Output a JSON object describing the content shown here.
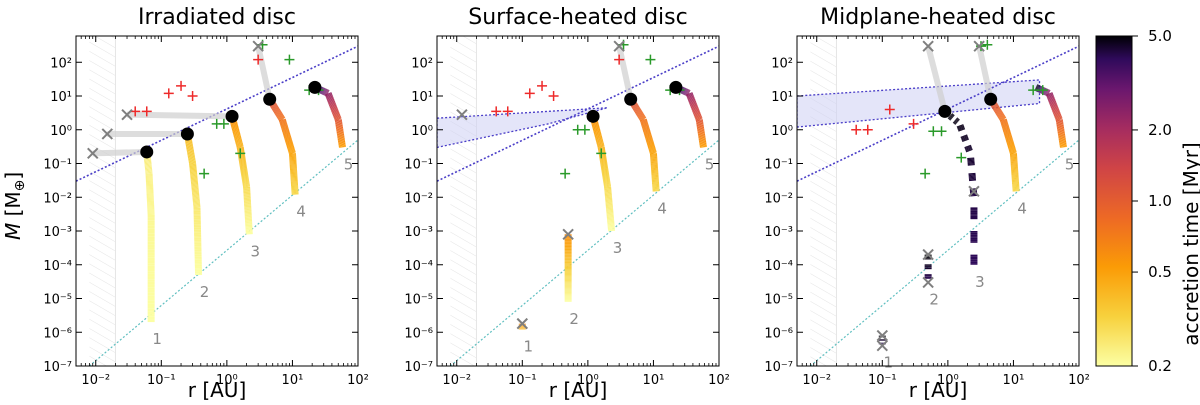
{
  "ylabel_main": "M",
  "ylabel_unit": "[M",
  "ylabel_sub": "⊕",
  "ylabel_close": "]",
  "colorbar": {
    "label": "accretion time [Myr]",
    "ticks": [
      "0.2",
      "0.5",
      "1.0",
      "2.0",
      "5.0"
    ],
    "tick_values": [
      0.2,
      0.5,
      1.0,
      2.0,
      5.0
    ],
    "range": [
      0.2,
      5.0
    ],
    "scale": "log",
    "colormap": "inferno_r"
  },
  "chart_data": [
    {
      "type": "line",
      "title": "Irradiated disc",
      "xlabel": "r [AU]",
      "xscale": "log",
      "yscale": "log",
      "xlim": [
        0.005,
        100
      ],
      "ylim": [
        1e-07,
        600
      ],
      "x_ticks": [
        "10⁻²",
        "10⁻¹",
        "10⁰",
        "10¹",
        "10²"
      ],
      "y_ticks": [
        "10⁻⁷",
        "10⁻⁶",
        "10⁻⁵",
        "10⁻⁴",
        "10⁻³",
        "10⁻²",
        "10⁻¹",
        "10⁰",
        "10¹",
        "10²"
      ],
      "series": [
        {
          "label": "1",
          "points": [
            [
              0.06,
              0.22
            ],
            [
              0.065,
              0.05
            ],
            [
              0.07,
              0.003
            ],
            [
              0.07,
              2e-06
            ]
          ],
          "t_start": 0.25,
          "t_end": 0.2
        },
        {
          "label": "2",
          "points": [
            [
              0.25,
              0.75
            ],
            [
              0.3,
              0.1
            ],
            [
              0.35,
              0.005
            ],
            [
              0.37,
              5e-05
            ]
          ],
          "t_start": 0.4,
          "t_end": 0.2
        },
        {
          "label": "3",
          "points": [
            [
              1.2,
              2.5
            ],
            [
              1.6,
              0.3
            ],
            [
              2.0,
              0.02
            ],
            [
              2.2,
              0.0008
            ]
          ],
          "t_start": 0.6,
          "t_end": 0.2
        },
        {
          "label": "4",
          "points": [
            [
              4.5,
              8
            ],
            [
              7,
              2
            ],
            [
              10,
              0.2
            ],
            [
              11,
              0.012
            ]
          ],
          "t_start": 1.2,
          "t_end": 0.3
        },
        {
          "label": "5",
          "points": [
            [
              22,
              18
            ],
            [
              35,
              12
            ],
            [
              50,
              2
            ],
            [
              58,
              0.3
            ]
          ],
          "t_start": 5.0,
          "t_end": 0.5
        }
      ],
      "final_planets": [
        [
          0.06,
          0.22
        ],
        [
          0.25,
          0.75
        ],
        [
          1.2,
          2.5
        ],
        [
          4.5,
          8
        ],
        [
          22,
          18
        ]
      ],
      "grey_crosses": [
        [
          0.009,
          0.2
        ],
        [
          0.015,
          0.75
        ],
        [
          0.03,
          2.8
        ],
        [
          3,
          300
        ]
      ],
      "grey_tracks": [
        [
          [
            0.009,
            0.2
          ],
          [
            0.06,
            0.22
          ]
        ],
        [
          [
            0.015,
            0.75
          ],
          [
            0.25,
            0.75
          ]
        ],
        [
          [
            0.03,
            2.8
          ],
          [
            1.2,
            2.5
          ]
        ],
        [
          [
            3,
            300
          ],
          [
            4.5,
            8
          ]
        ]
      ],
      "red_plus": [
        [
          0.04,
          3.5
        ],
        [
          0.06,
          3.5
        ],
        [
          0.13,
          12
        ],
        [
          0.2,
          20
        ],
        [
          0.3,
          10
        ],
        [
          3,
          120
        ]
      ],
      "green_plus": [
        [
          0.7,
          1.5
        ],
        [
          0.9,
          1.5
        ],
        [
          0.45,
          0.05
        ],
        [
          1.6,
          0.2
        ],
        [
          3.5,
          330
        ],
        [
          9,
          120
        ],
        [
          18,
          15
        ],
        [
          25,
          15
        ]
      ],
      "pebble_iso_line": {
        "points": [
          [
            0.005,
            0.03
          ],
          [
            100,
            300
          ]
        ],
        "color": "#4b3fc8"
      },
      "lower_line": {
        "points": [
          [
            0.008,
            1e-07
          ],
          [
            100,
            0.5
          ]
        ],
        "color": "#5fbfc0"
      },
      "shaded_region": null,
      "inner_edge_x": [
        0.008,
        0.02
      ]
    },
    {
      "type": "line",
      "title": "Surface-heated disc",
      "xlabel": "r [AU]",
      "xscale": "log",
      "yscale": "log",
      "xlim": [
        0.005,
        100
      ],
      "ylim": [
        1e-07,
        600
      ],
      "x_ticks": [
        "10⁻²",
        "10⁻¹",
        "10⁰",
        "10¹",
        "10²"
      ],
      "y_ticks": [
        "10⁻⁷",
        "10⁻⁶",
        "10⁻⁵",
        "10⁻⁴",
        "10⁻³",
        "10⁻²",
        "10⁻¹",
        "10⁰",
        "10¹",
        "10²"
      ],
      "series": [
        {
          "label": "1",
          "points": [
            [
              0.1,
              1.8e-06
            ],
            [
              0.1,
              1.2e-06
            ]
          ],
          "t_start": 0.6,
          "t_end": 0.4
        },
        {
          "label": "2",
          "points": [
            [
              0.5,
              0.0008
            ],
            [
              0.5,
              0.0001
            ],
            [
              0.5,
              8e-06
            ]
          ],
          "t_start": 0.6,
          "t_end": 0.2
        },
        {
          "label": "3",
          "points": [
            [
              1.2,
              2.5
            ],
            [
              1.6,
              0.3
            ],
            [
              2.0,
              0.02
            ],
            [
              2.3,
              0.001
            ]
          ],
          "t_start": 0.6,
          "t_end": 0.2
        },
        {
          "label": "4",
          "points": [
            [
              4.5,
              8
            ],
            [
              7,
              2
            ],
            [
              10,
              0.2
            ],
            [
              11,
              0.015
            ]
          ],
          "t_start": 1.2,
          "t_end": 0.3
        },
        {
          "label": "5",
          "points": [
            [
              22,
              18
            ],
            [
              35,
              12
            ],
            [
              50,
              2
            ],
            [
              58,
              0.3
            ]
          ],
          "t_start": 5.0,
          "t_end": 0.5
        }
      ],
      "final_planets": [
        [
          1.2,
          2.5
        ],
        [
          4.5,
          8
        ],
        [
          22,
          18
        ]
      ],
      "grey_crosses": [
        [
          0.012,
          2.8
        ],
        [
          3,
          300
        ],
        [
          0.1,
          1.8e-06
        ],
        [
          0.5,
          0.0008
        ]
      ],
      "grey_tracks": [
        [
          [
            3,
            300
          ],
          [
            4.5,
            8
          ]
        ]
      ],
      "red_plus": [
        [
          0.04,
          3.5
        ],
        [
          0.06,
          3.5
        ],
        [
          0.13,
          12
        ],
        [
          0.2,
          20
        ],
        [
          0.3,
          10
        ],
        [
          3,
          120
        ]
      ],
      "green_plus": [
        [
          0.7,
          1
        ],
        [
          0.9,
          1
        ],
        [
          0.45,
          0.05
        ],
        [
          1.6,
          0.2
        ],
        [
          3.5,
          330
        ],
        [
          9,
          120
        ],
        [
          18,
          15
        ],
        [
          25,
          15
        ]
      ],
      "pebble_iso_line": {
        "points": [
          [
            0.005,
            0.03
          ],
          [
            100,
            300
          ]
        ],
        "color": "#4b3fc8"
      },
      "lower_line": {
        "points": [
          [
            0.008,
            1e-07
          ],
          [
            100,
            0.5
          ]
        ],
        "color": "#5fbfc0"
      },
      "shaded_region": [
        [
          0.005,
          0.3
        ],
        [
          0.25,
          1.5
        ],
        [
          2,
          4.5
        ],
        [
          0.005,
          2.2
        ]
      ],
      "inner_edge_x": [
        0.008,
        0.02
      ]
    },
    {
      "type": "line",
      "title": "Midplane-heated disc",
      "xlabel": "r [AU]",
      "xscale": "log",
      "yscale": "log",
      "xlim": [
        0.005,
        100
      ],
      "ylim": [
        1e-07,
        600
      ],
      "x_ticks": [
        "10⁻²",
        "10⁻¹",
        "10⁰",
        "10¹",
        "10²"
      ],
      "y_ticks": [
        "10⁻⁷",
        "10⁻⁶",
        "10⁻⁵",
        "10⁻⁴",
        "10⁻³",
        "10⁻²",
        "10⁻¹",
        "10⁰",
        "10¹",
        "10²"
      ],
      "series": [
        {
          "label": "1",
          "points": [
            [
              0.1,
              8e-07
            ],
            [
              0.1,
              4e-07
            ]
          ],
          "t_start": 5.0,
          "t_end": 4.0,
          "dashed": true
        },
        {
          "label": "2",
          "points": [
            [
              0.5,
              0.0002
            ],
            [
              0.5,
              3e-05
            ]
          ],
          "t_start": 5.0,
          "t_end": 4.0,
          "dashed": true
        },
        {
          "label": "3",
          "points": [
            [
              0.9,
              3.5
            ],
            [
              1.5,
              1.5
            ],
            [
              2.2,
              0.2
            ],
            [
              2.5,
              0.01
            ],
            [
              2.5,
              0.0001
            ]
          ],
          "t_start": 5.0,
          "t_end": 4.0,
          "dashed": true
        },
        {
          "label": "4",
          "points": [
            [
              4.5,
              8
            ],
            [
              7,
              2
            ],
            [
              10,
              0.2
            ],
            [
              11,
              0.015
            ]
          ],
          "t_start": 1.2,
          "t_end": 0.3
        },
        {
          "label": "5",
          "points": [
            [
              22,
              18
            ],
            [
              35,
              12
            ],
            [
              50,
              2
            ],
            [
              58,
              0.3
            ]
          ],
          "t_start": 5.0,
          "t_end": 0.5
        }
      ],
      "final_planets": [
        [
          0.9,
          3.5
        ],
        [
          4.5,
          8
        ]
      ],
      "grey_crosses": [
        [
          0.5,
          300
        ],
        [
          3,
          300
        ],
        [
          0.1,
          8e-07
        ],
        [
          0.1,
          4e-07
        ],
        [
          0.5,
          0.0002
        ],
        [
          0.5,
          3e-05
        ],
        [
          2.5,
          0.015
        ]
      ],
      "grey_tracks": [
        [
          [
            0.5,
            300
          ],
          [
            0.9,
            3.5
          ]
        ],
        [
          [
            3,
            300
          ],
          [
            4.5,
            8
          ]
        ]
      ],
      "red_plus": [
        [
          0.04,
          1
        ],
        [
          0.06,
          1
        ],
        [
          0.13,
          4
        ],
        [
          0.3,
          1.5
        ]
      ],
      "green_plus": [
        [
          0.45,
          0.05
        ],
        [
          0.6,
          0.9
        ],
        [
          0.8,
          0.9
        ],
        [
          1.6,
          0.15
        ],
        [
          4,
          330
        ],
        [
          20,
          15
        ],
        [
          28,
          15
        ],
        [
          3.2,
          300
        ]
      ],
      "pebble_iso_line": {
        "points": [
          [
            0.005,
            0.03
          ],
          [
            100,
            300
          ]
        ],
        "color": "#4b3fc8"
      },
      "lower_line": {
        "points": [
          [
            0.008,
            1e-07
          ],
          [
            100,
            0.5
          ]
        ],
        "color": "#5fbfc0"
      },
      "shaded_region": [
        [
          0.005,
          1.2
        ],
        [
          25,
          6
        ],
        [
          25,
          30
        ],
        [
          0.005,
          10
        ]
      ],
      "inner_edge_x": [
        0.008,
        0.02
      ]
    }
  ]
}
